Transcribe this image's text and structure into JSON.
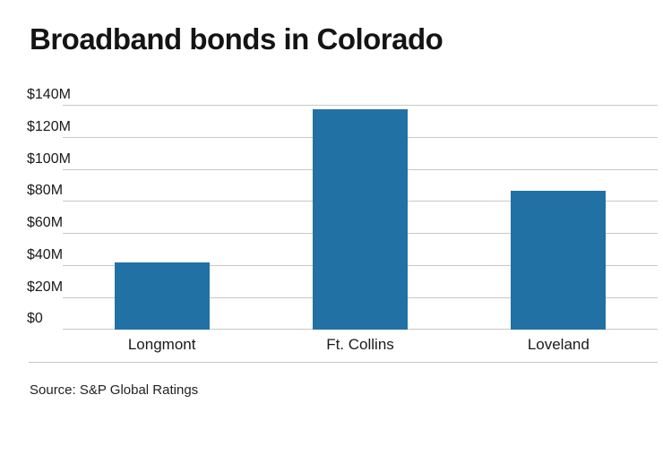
{
  "chart_data": {
    "type": "bar",
    "title": "Broadband bonds in Colorado",
    "categories": [
      "Longmont",
      "Ft. Collins",
      "Loveland"
    ],
    "values": [
      42,
      138,
      87
    ],
    "unit": "USD millions",
    "xlabel": "",
    "ylabel": "",
    "ylim": [
      0,
      140
    ],
    "ytick_step": 20,
    "ytick_labels": [
      "$0",
      "$20M",
      "$40M",
      "$60M",
      "$80M",
      "$100M",
      "$120M",
      "$140M"
    ],
    "grid": true,
    "legend": "none",
    "bar_color": "#2171a5",
    "gridline_color": "#c8c8c8",
    "source": "Source: S&P Global Ratings"
  }
}
